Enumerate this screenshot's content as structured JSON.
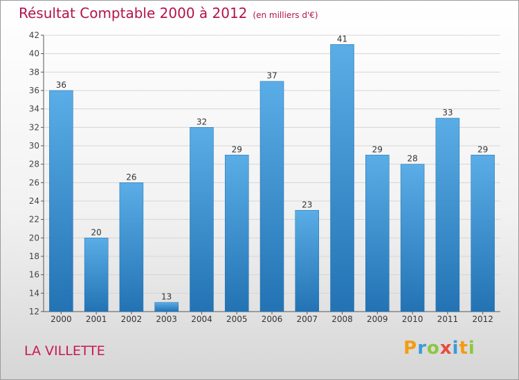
{
  "chart_data": {
    "type": "bar",
    "title": "Résultat Comptable 2000 à 2012",
    "unit_note": "(en milliers d'€)",
    "categories": [
      "2000",
      "2001",
      "2002",
      "2003",
      "2004",
      "2005",
      "2006",
      "2007",
      "2008",
      "2009",
      "2010",
      "2011",
      "2012"
    ],
    "values": [
      36,
      20,
      26,
      13,
      32,
      29,
      37,
      23,
      41,
      29,
      28,
      33,
      29
    ],
    "ylim": [
      12,
      42
    ],
    "yticks": [
      12,
      14,
      16,
      18,
      20,
      22,
      24,
      26,
      28,
      30,
      32,
      34,
      36,
      38,
      40,
      42
    ],
    "grid": true,
    "xlabel": "",
    "ylabel": ""
  },
  "location": "LA VILLETTE",
  "brand": {
    "letters": [
      "P",
      "r",
      "o",
      "x",
      "i",
      "t",
      "i"
    ],
    "colors": [
      "#f39c12",
      "#3a9bd6",
      "#8cc63f",
      "#e74c3c",
      "#3a9bd6",
      "#f39c12",
      "#8cc63f"
    ]
  },
  "colors": {
    "bar_light": "#5aade6",
    "bar_dark": "#2373b4",
    "title": "#b3124d",
    "grid": "#d5d5d5"
  }
}
